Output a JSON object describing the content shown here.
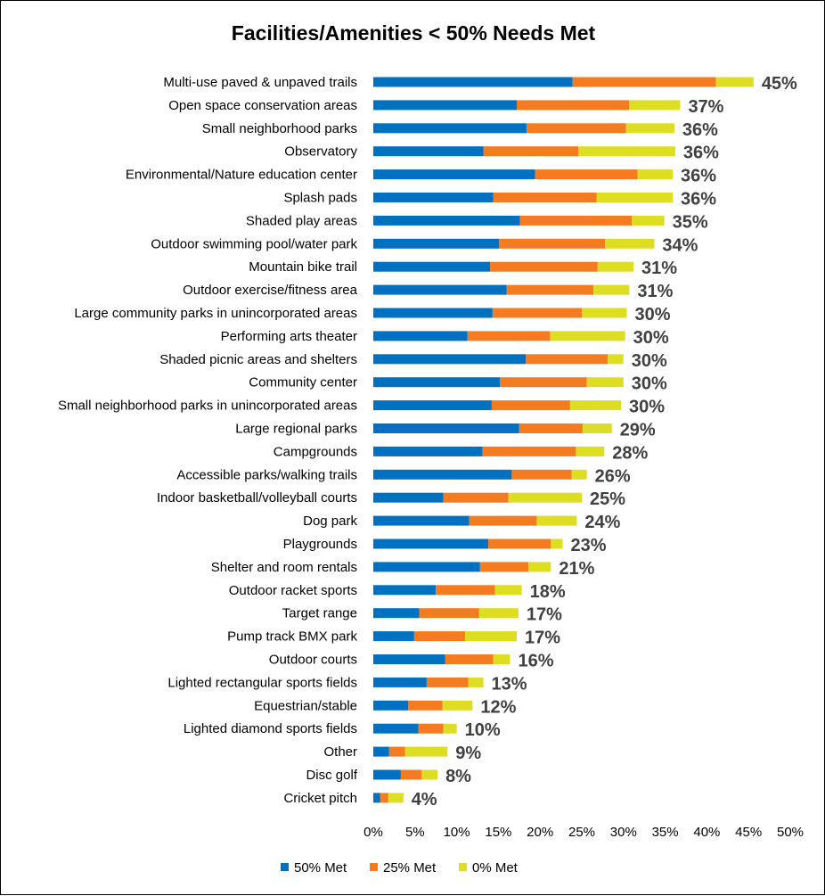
{
  "chart_data": {
    "type": "bar",
    "orientation": "horizontal",
    "stacked": true,
    "title": "Facilities/Amenities < 50% Needs Met",
    "xlabel": "",
    "ylabel": "",
    "xlim": [
      0,
      50
    ],
    "x_ticks": [
      "0%",
      "5%",
      "10%",
      "15%",
      "20%",
      "25%",
      "30%",
      "35%",
      "40%",
      "45%",
      "50%"
    ],
    "grid": false,
    "legend_position": "bottom",
    "categories": [
      "Multi-use paved & unpaved trails",
      "Open space conservation areas",
      "Small neighborhood parks",
      "Observatory",
      "Environmental/Nature education center",
      "Splash pads",
      "Shaded play areas",
      "Outdoor swimming pool/water park",
      "Mountain bike trail",
      "Outdoor exercise/fitness area",
      "Large community parks in unincorporated areas",
      "Performing arts theater",
      "Shaded picnic areas and shelters",
      "Community center",
      "Small neighborhood parks in unincorporated areas",
      "Large regional parks",
      "Campgrounds",
      "Accessible parks/walking trails",
      "Indoor basketball/volleyball courts",
      "Dog park",
      "Playgrounds",
      "Shelter and room rentals",
      "Outdoor racket sports",
      "Target range",
      "Pump track BMX park",
      "Outdoor courts ",
      "Lighted rectangular sports fields",
      "Equestrian/stable",
      "Lighted diamond sports fields ",
      "Other",
      "Disc golf",
      "Cricket pitch"
    ],
    "series": [
      {
        "name": "50% Met",
        "color": "#0070C0",
        "values": [
          23.9,
          17.2,
          18.4,
          13.2,
          19.4,
          14.4,
          17.6,
          15.1,
          14.0,
          16.0,
          14.3,
          11.3,
          18.3,
          15.2,
          14.2,
          17.5,
          13.1,
          16.6,
          8.4,
          11.5,
          13.8,
          12.8,
          7.5,
          5.5,
          4.9,
          8.6,
          6.4,
          4.2,
          5.4,
          1.9,
          3.3,
          0.8
        ]
      },
      {
        "name": "25% Met",
        "color": "#F47B20",
        "values": [
          17.2,
          13.5,
          11.9,
          11.4,
          12.3,
          12.4,
          13.4,
          12.7,
          12.9,
          10.4,
          10.7,
          9.9,
          9.8,
          10.4,
          9.4,
          7.6,
          11.2,
          7.2,
          7.8,
          8.1,
          7.5,
          5.8,
          7.1,
          7.2,
          6.1,
          5.8,
          5.0,
          4.1,
          3.0,
          1.9,
          2.5,
          1.0
        ]
      },
      {
        "name": "0% Met",
        "color": "#DDDD22",
        "values": [
          4.5,
          6.1,
          5.8,
          11.6,
          4.2,
          9.1,
          3.9,
          5.9,
          4.3,
          4.3,
          5.4,
          9.0,
          1.9,
          4.4,
          6.1,
          3.5,
          3.4,
          1.8,
          8.8,
          4.8,
          1.4,
          2.7,
          3.2,
          4.7,
          6.2,
          2.0,
          1.8,
          3.6,
          1.6,
          5.1,
          1.9,
          1.8
        ]
      }
    ],
    "totals": [
      "45%",
      "37%",
      "36%",
      "36%",
      "36%",
      "36%",
      "35%",
      "34%",
      "31%",
      "31%",
      "30%",
      "30%",
      "30%",
      "30%",
      "30%",
      "29%",
      "28%",
      "26%",
      "25%",
      "24%",
      "23%",
      "21%",
      "18%",
      "17%",
      "17%",
      "16%",
      "13%",
      "12%",
      "10%",
      "9%",
      "8%",
      "4%"
    ]
  }
}
